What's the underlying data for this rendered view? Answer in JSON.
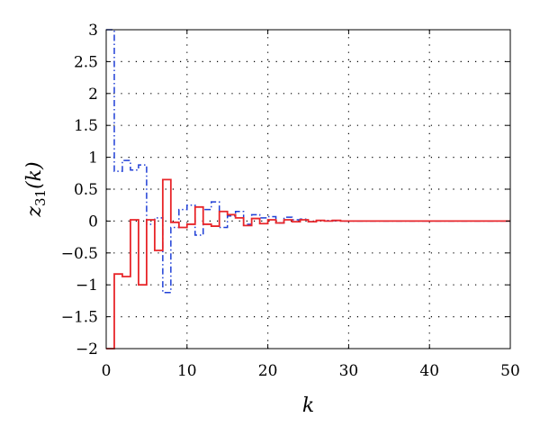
{
  "chart_data": {
    "type": "line",
    "step": true,
    "title": "",
    "xlabel": "k",
    "ylabel_main": "z",
    "ylabel_sub": "31",
    "ylabel_arg": "(k)",
    "xlim": [
      0,
      50
    ],
    "ylim": [
      -2,
      3
    ],
    "xticks": [
      0,
      10,
      20,
      30,
      40,
      50
    ],
    "xtick_labels": [
      "0",
      "10",
      "20",
      "30",
      "40",
      "50"
    ],
    "yticks": [
      -2,
      -1.5,
      -1,
      -0.5,
      0,
      0.5,
      1,
      1.5,
      2,
      2.5,
      3
    ],
    "ytick_labels": [
      "−2",
      "−1.5",
      "−1",
      "−0.5",
      "0",
      "0.5",
      "1",
      "1.5",
      "2",
      "2.5",
      "3"
    ],
    "grid": true,
    "series": [
      {
        "color": "#1f3fd6",
        "dash": "dashdot",
        "x": [
          0,
          1,
          2,
          3,
          4,
          5,
          6,
          7,
          8,
          9,
          10,
          11,
          12,
          13,
          14,
          15,
          16,
          17,
          18,
          19,
          20,
          21,
          22,
          23,
          24,
          25,
          26,
          27,
          28,
          29,
          30,
          31,
          32,
          33,
          34,
          35,
          36,
          37,
          38,
          39,
          40,
          41,
          42,
          43,
          44,
          45,
          46,
          47,
          48,
          49,
          50
        ],
        "y": [
          3,
          0.78,
          0.95,
          0.8,
          0.88,
          -0.05,
          0.05,
          -1.12,
          -0.1,
          0.18,
          0.25,
          -0.22,
          0.18,
          0.3,
          -0.1,
          0.08,
          0.15,
          -0.05,
          0.1,
          0.05,
          0.07,
          -0.03,
          0.06,
          0.02,
          0.03,
          -0.01,
          0.01,
          0.01,
          0.005,
          0,
          0,
          0,
          0,
          0,
          0,
          0,
          0,
          0,
          0,
          0,
          0,
          0,
          0,
          0,
          0,
          0,
          0,
          0,
          0,
          0,
          0
        ]
      },
      {
        "color": "#e8262a",
        "dash": "solid",
        "x": [
          0,
          1,
          2,
          3,
          4,
          5,
          6,
          7,
          8,
          9,
          10,
          11,
          12,
          13,
          14,
          15,
          16,
          17,
          18,
          19,
          20,
          21,
          22,
          23,
          24,
          25,
          26,
          27,
          28,
          29,
          30,
          31,
          32,
          33,
          34,
          35,
          36,
          37,
          38,
          39,
          40,
          41,
          42,
          43,
          44,
          45,
          46,
          47,
          48,
          49,
          50
        ],
        "y": [
          -2,
          -0.83,
          -0.87,
          0.02,
          -1.0,
          0.02,
          -0.46,
          0.65,
          -0.02,
          -0.1,
          -0.05,
          0.22,
          -0.05,
          -0.08,
          0.15,
          0.1,
          0.05,
          -0.07,
          0.04,
          -0.04,
          0.02,
          -0.03,
          0.02,
          -0.01,
          0.02,
          -0.01,
          0.01,
          0,
          0.01,
          0,
          0,
          0,
          0,
          0,
          0,
          0,
          0,
          0,
          0,
          0,
          0,
          0,
          0,
          0,
          0,
          0,
          0,
          0,
          0,
          0,
          0
        ]
      }
    ]
  }
}
